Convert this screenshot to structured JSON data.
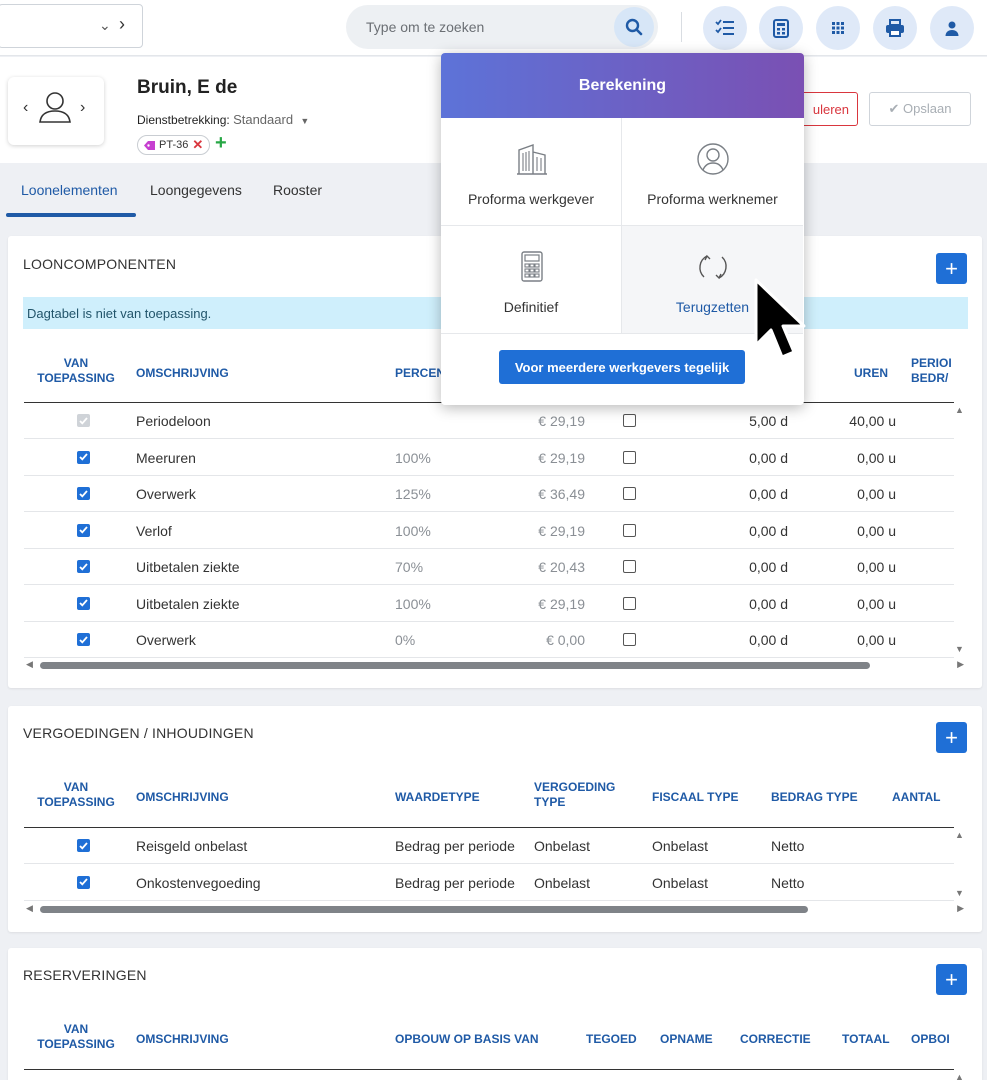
{
  "topbar": {
    "search_placeholder": "Type om te zoeken",
    "icons": [
      "chevron-down-icon",
      "chevron-right-icon",
      "search-icon",
      "checklist-icon",
      "calculator-icon",
      "apps-grid-icon",
      "printer-icon",
      "user-icon"
    ]
  },
  "employee": {
    "name": "Bruin, E de",
    "dienst_label": "Dienstbetrekking:",
    "dienst_value": "Standaard",
    "tag": "PT-36",
    "annuleren_label": "uleren",
    "opslaan_label": "Opslaan"
  },
  "tabs": [
    {
      "label": "Loonelementen",
      "active": true
    },
    {
      "label": "Loongegevens",
      "active": false
    },
    {
      "label": "Rooster",
      "active": false
    }
  ],
  "looncomponenten": {
    "title": "LOONCOMPONENTEN",
    "info": "Dagtabel is niet van toepassing.",
    "headers": {
      "van": "VAN",
      "toepassing": "TOEPASSING",
      "omschrijving": "OMSCHRIJVING",
      "percentage": "PERCEN",
      "uren": "UREN",
      "period1": "PERIOI",
      "period2": "BEDR/"
    },
    "rows": [
      {
        "checked": true,
        "disabled": true,
        "omschrijving": "Periodeloon",
        "percentage": "",
        "bedrag": "€ 29,19",
        "dagen": "5,00 d",
        "uren": "40,00 u"
      },
      {
        "checked": true,
        "disabled": false,
        "omschrijving": "Meeruren",
        "percentage": "100%",
        "bedrag": "€ 29,19",
        "dagen": "0,00 d",
        "uren": "0,00 u"
      },
      {
        "checked": true,
        "disabled": false,
        "omschrijving": "Overwerk",
        "percentage": "125%",
        "bedrag": "€ 36,49",
        "dagen": "0,00 d",
        "uren": "0,00 u"
      },
      {
        "checked": true,
        "disabled": false,
        "omschrijving": "Verlof",
        "percentage": "100%",
        "bedrag": "€ 29,19",
        "dagen": "0,00 d",
        "uren": "0,00 u"
      },
      {
        "checked": true,
        "disabled": false,
        "omschrijving": "Uitbetalen ziekte",
        "percentage": "70%",
        "bedrag": "€ 20,43",
        "dagen": "0,00 d",
        "uren": "0,00 u"
      },
      {
        "checked": true,
        "disabled": false,
        "omschrijving": "Uitbetalen ziekte",
        "percentage": "100%",
        "bedrag": "€ 29,19",
        "dagen": "0,00 d",
        "uren": "0,00 u"
      },
      {
        "checked": true,
        "disabled": false,
        "omschrijving": "Overwerk",
        "percentage": "0%",
        "bedrag": "€ 0,00",
        "dagen": "0,00 d",
        "uren": "0,00 u"
      }
    ]
  },
  "vergoedingen": {
    "title": "VERGOEDINGEN / INHOUDINGEN",
    "headers": {
      "van": "VAN",
      "toepassing": "TOEPASSING",
      "omschrijving": "OMSCHRIJVING",
      "waardetype": "WAARDETYPE",
      "vergoeding1": "VERGOEDING",
      "vergoeding2": "TYPE",
      "fiscaal": "FISCAAL TYPE",
      "bedragtype": "BEDRAG TYPE",
      "aantal": "AANTAL"
    },
    "rows": [
      {
        "checked": true,
        "omschrijving": "Reisgeld onbelast",
        "waardetype": "Bedrag per periode",
        "vergoeding": "Onbelast",
        "fiscaal": "Onbelast",
        "bedragtype": "Netto"
      },
      {
        "checked": true,
        "omschrijving": "Onkostenvegoeding",
        "waardetype": "Bedrag per periode",
        "vergoeding": "Onbelast",
        "fiscaal": "Onbelast",
        "bedragtype": "Netto"
      }
    ]
  },
  "reserveringen": {
    "title": "RESERVERINGEN",
    "headers": {
      "van": "VAN",
      "toepassing": "TOEPASSING",
      "omschrijving": "OMSCHRIJVING",
      "opbouw": "OPBOUW OP BASIS VAN",
      "tegoed": "TEGOED",
      "opname": "OPNAME",
      "correctie": "CORRECTIE",
      "totaal": "TOTAAL",
      "opbou": "OPBOI"
    }
  },
  "berekening": {
    "title": "Berekening",
    "items": [
      {
        "label": "Proforma werkgever",
        "icon": "building-icon"
      },
      {
        "label": "Proforma werknemer",
        "icon": "person-circle-icon"
      },
      {
        "label": "Definitief",
        "icon": "calculator-icon"
      },
      {
        "label": "Terugzetten",
        "icon": "refresh-icon"
      }
    ],
    "multi_button": "Voor meerdere werkgevers tegelijk"
  }
}
